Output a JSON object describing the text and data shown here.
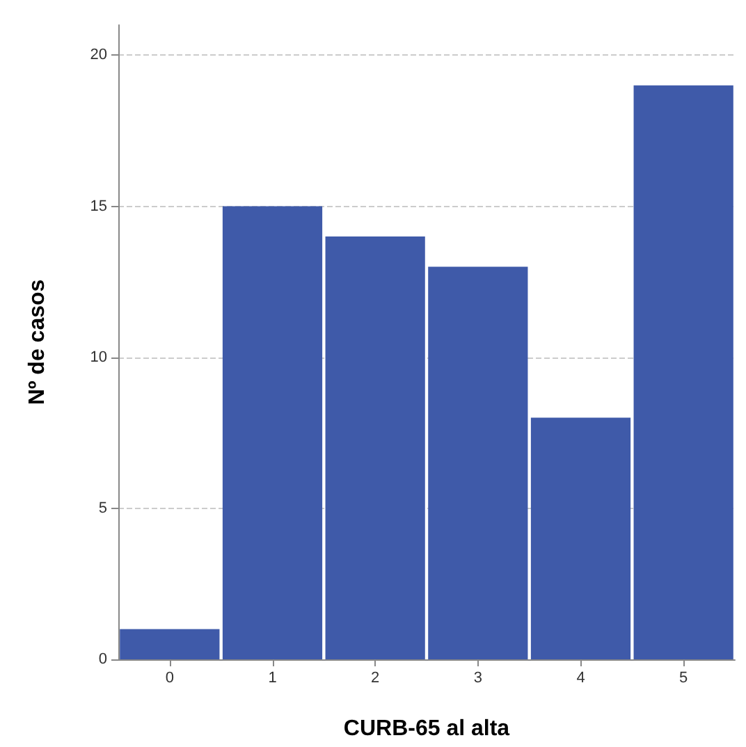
{
  "chart_data": {
    "type": "bar",
    "xlabel": "CURB-65 al alta",
    "ylabel": "Nº de casos",
    "categories": [
      "0",
      "1",
      "2",
      "3",
      "4",
      "5"
    ],
    "values": [
      1,
      15,
      14,
      13,
      8,
      19
    ],
    "color": "#3f5aa9",
    "ylim": [
      0,
      21
    ],
    "yticks": [
      0,
      5,
      10,
      15,
      20
    ],
    "grid": "y"
  }
}
